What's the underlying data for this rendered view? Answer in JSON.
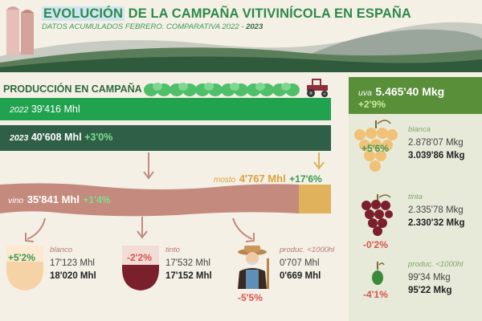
{
  "header": {
    "title_highlight": "EVOLUCIÓN",
    "title_rest": " DE LA CAMPAÑA VITIVINÍCOLA EN ESPAÑA",
    "subtitle_main": "DATOS ACUMULADOS FEBRERO. COMPARATIVA 2022 - ",
    "subtitle_year": "2023"
  },
  "produccion": {
    "title": "PRODUCCIÓN EN CAMPAÑA",
    "bar_2022": {
      "year": "2022",
      "value": "39'416 Mhl"
    },
    "bar_2023": {
      "year": "2023",
      "value": "40'608 Mhl",
      "change": "+3'0%"
    }
  },
  "vino": {
    "label": "vino",
    "value": "35'841 Mhl",
    "change": "+1'4%"
  },
  "mosto": {
    "label": "mosto",
    "value": "4'767 Mhl",
    "change": "+17'6%"
  },
  "categorias": [
    {
      "label": "blanco",
      "change": "+5'2%",
      "v2022": "17'123 Mhl",
      "v2023": "18'020 Mhl"
    },
    {
      "label": "tinto",
      "change": "-2'2%",
      "v2022": "17'532 Mhl",
      "v2023": "17'152 Mhl"
    },
    {
      "label": "produc. <1000hl",
      "change": "-5'5%",
      "v2022": "0'707 Mhl",
      "v2023": "0'669 Mhl"
    }
  ],
  "uva": {
    "label": "uva",
    "value": "5.465'40 Mkg",
    "change": "+2'9%",
    "items": [
      {
        "label": "blanca",
        "change": "+5'6%",
        "v2022": "2.878'07 Mkg",
        "v2023": "3.039'86 Mkg"
      },
      {
        "label": "tinta",
        "change": "-0'2%",
        "v2022": "2.335'78 Mkg",
        "v2023": "2.330'32 Mkg"
      },
      {
        "label": "produc. <1000hl",
        "change": "-4'1%",
        "v2022": "99'34 Mkg",
        "v2023": "95'22 Mkg"
      }
    ]
  },
  "colors": {
    "bar_2022": "#21a24e",
    "bar_2023": "#2f5f46",
    "vino": "#c48a7d",
    "mosto": "#e0b25c",
    "uva_header": "#5a8f3a",
    "right_panel": "#e8ead9"
  }
}
